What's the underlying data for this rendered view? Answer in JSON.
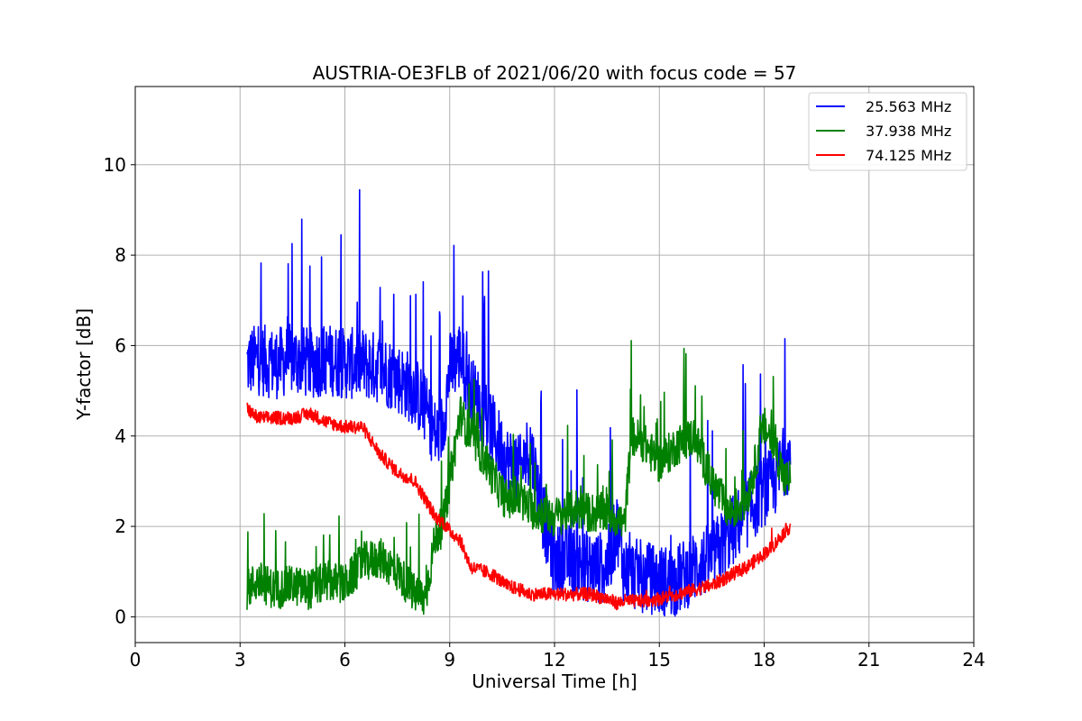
{
  "chart_data": {
    "type": "line",
    "title": "AUSTRIA-OE3FLB of 2021/06/20 with focus code = 57",
    "xlabel": "Universal Time [h]",
    "ylabel": "Y-factor [dB]",
    "xlim": [
      0,
      24
    ],
    "ylim": [
      -0.57,
      11.73
    ],
    "xticks": [
      "0",
      "3",
      "6",
      "9",
      "12",
      "15",
      "18",
      "21",
      "24"
    ],
    "yticks": [
      "0",
      "2",
      "4",
      "6",
      "8",
      "10"
    ],
    "grid": true,
    "legend_position": "upper right",
    "series": [
      {
        "name": "25.563 MHz",
        "color": "#0000ff",
        "x": [
          3.2,
          3.5,
          4.0,
          4.5,
          5.0,
          5.5,
          6.0,
          6.5,
          7.0,
          7.5,
          8.0,
          8.3,
          8.6,
          8.8,
          9.0,
          9.3,
          9.6,
          10.0,
          10.3,
          10.6,
          11.0,
          11.3,
          11.6,
          12.0,
          12.3,
          12.6,
          13.0,
          13.5,
          13.8,
          14.0,
          14.5,
          15.0,
          15.5,
          16.0,
          16.5,
          17.0,
          17.5,
          18.0,
          18.3,
          18.6,
          18.75
        ],
        "y": [
          5.6,
          5.7,
          5.6,
          5.7,
          5.6,
          5.7,
          5.6,
          5.6,
          5.5,
          5.3,
          5.0,
          4.6,
          4.0,
          4.2,
          5.5,
          5.8,
          5.0,
          4.5,
          4.0,
          3.5,
          3.2,
          3.8,
          2.5,
          1.2,
          1.3,
          1.2,
          1.1,
          1.1,
          2.0,
          1.0,
          0.9,
          0.8,
          0.8,
          1.1,
          1.3,
          1.8,
          2.3,
          2.8,
          3.0,
          3.5,
          3.5
        ]
      },
      {
        "name": "37.938 MHz",
        "color": "#008000",
        "x": [
          3.2,
          3.5,
          4.0,
          4.5,
          5.0,
          5.5,
          6.0,
          6.5,
          7.0,
          7.5,
          8.0,
          8.3,
          8.6,
          8.8,
          9.0,
          9.3,
          9.6,
          10.0,
          10.3,
          10.6,
          11.0,
          11.3,
          11.6,
          12.0,
          12.3,
          12.6,
          13.0,
          13.5,
          13.8,
          14.0,
          14.2,
          14.5,
          15.0,
          15.5,
          16.0,
          16.5,
          17.0,
          17.5,
          18.0,
          18.3,
          18.6,
          18.75
        ],
        "y": [
          0.6,
          0.8,
          0.6,
          0.7,
          0.6,
          0.8,
          0.7,
          1.2,
          1.3,
          1.0,
          0.5,
          0.4,
          1.8,
          2.0,
          3.0,
          4.5,
          4.0,
          3.5,
          3.0,
          2.6,
          2.6,
          2.4,
          2.3,
          2.2,
          2.3,
          2.4,
          2.3,
          2.3,
          2.2,
          2.0,
          4.0,
          3.9,
          3.4,
          3.8,
          4.0,
          3.0,
          2.3,
          2.6,
          4.2,
          3.8,
          3.0,
          3.1
        ]
      },
      {
        "name": "74.125 MHz",
        "color": "#ff0000",
        "x": [
          3.2,
          3.5,
          4.0,
          4.5,
          5.0,
          5.5,
          6.0,
          6.5,
          7.0,
          7.5,
          8.0,
          8.3,
          8.6,
          8.8,
          9.0,
          9.3,
          9.6,
          10.0,
          10.3,
          10.6,
          11.0,
          11.3,
          11.6,
          12.0,
          12.3,
          12.6,
          13.0,
          13.5,
          13.8,
          14.0,
          14.5,
          15.0,
          15.5,
          16.0,
          16.5,
          17.0,
          17.5,
          18.0,
          18.3,
          18.6,
          18.75
        ],
        "y": [
          4.6,
          4.4,
          4.4,
          4.4,
          4.5,
          4.3,
          4.2,
          4.2,
          3.6,
          3.2,
          3.0,
          2.6,
          2.2,
          2.1,
          1.9,
          1.7,
          1.1,
          1.0,
          0.9,
          0.7,
          0.6,
          0.5,
          0.5,
          0.5,
          0.5,
          0.5,
          0.5,
          0.4,
          0.3,
          0.35,
          0.35,
          0.4,
          0.5,
          0.6,
          0.7,
          0.9,
          1.1,
          1.4,
          1.6,
          1.9,
          2.0
        ]
      }
    ]
  }
}
